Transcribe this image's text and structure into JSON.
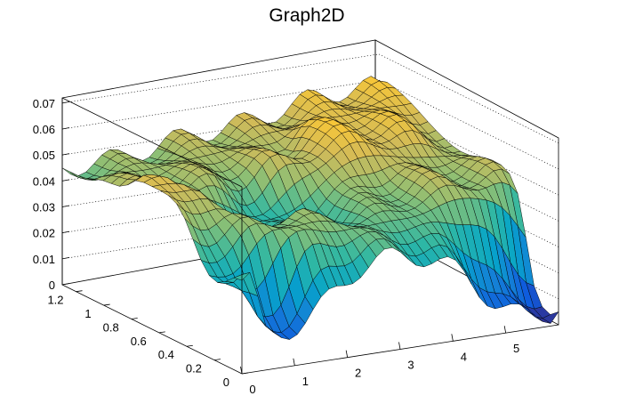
{
  "chart_data": {
    "type": "surface",
    "title": "Graph2D",
    "xlabel": "",
    "ylabel": "",
    "zlabel": "",
    "x_ticks": [
      "0",
      "1",
      "2",
      "3",
      "4",
      "5"
    ],
    "y_ticks": [
      "0",
      "0.2",
      "0.4",
      "0.6",
      "0.8",
      "1",
      "1.2"
    ],
    "z_ticks": [
      "0",
      "0.01",
      "0.02",
      "0.03",
      "0.04",
      "0.05",
      "0.06",
      "0.07"
    ],
    "xlim": [
      0,
      6
    ],
    "ylim": [
      0,
      1.3
    ],
    "zlim": [
      0,
      0.072
    ],
    "grid": true,
    "colormap": [
      "#352a87",
      "#0f5cdd",
      "#1481d6",
      "#06a4ca",
      "#2eb7a4",
      "#87bf77",
      "#d1bb59",
      "#fec832",
      "#f9fb0e"
    ],
    "grid_resolution": [
      40,
      22
    ],
    "surface_samples": [
      {
        "x": 0,
        "y": 0,
        "z": 0.036
      },
      {
        "x": 0,
        "y": 0.65,
        "z": 0.055
      },
      {
        "x": 0,
        "y": 1.3,
        "z": 0.045
      },
      {
        "x": 0.6,
        "y": 0,
        "z": 0.014
      },
      {
        "x": 0.7,
        "y": 0.9,
        "z": 0.048
      },
      {
        "x": 1.6,
        "y": 0.3,
        "z": 0.046
      },
      {
        "x": 2.0,
        "y": 0.55,
        "z": 0.035
      },
      {
        "x": 3.0,
        "y": 1.0,
        "z": 0.05
      },
      {
        "x": 4.0,
        "y": 0.9,
        "z": 0.058
      },
      {
        "x": 5.2,
        "y": 0.4,
        "z": 0.049
      },
      {
        "x": 6,
        "y": 0,
        "z": 0.005
      },
      {
        "x": 6,
        "y": 1.3,
        "z": 0.058
      }
    ]
  }
}
